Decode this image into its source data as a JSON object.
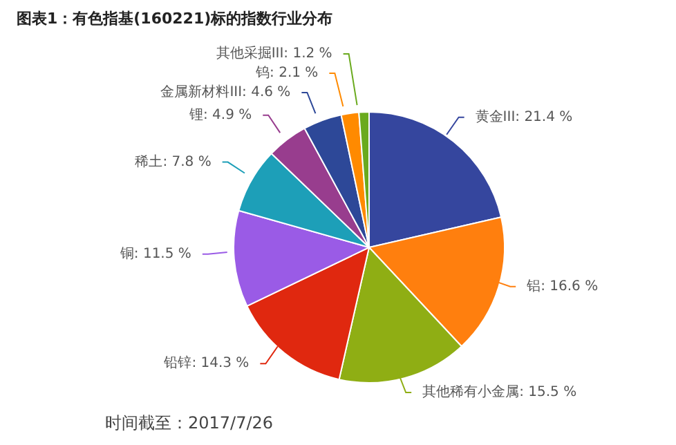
{
  "chart_data": {
    "type": "pie",
    "title": "图表1：有色指基(160221)标的指数行业分布",
    "categories": [
      "黄金III",
      "铝",
      "其他稀有小金属",
      "铅锌",
      "铜",
      "稀土",
      "锂",
      "金属新材料III",
      "钨",
      "其他采掘III"
    ],
    "values": [
      21.4,
      16.6,
      15.5,
      14.3,
      11.5,
      7.8,
      4.9,
      4.6,
      2.1,
      1.2
    ],
    "value_labels": [
      "21.4 %",
      "16.6 %",
      "15.5 %",
      "14.3 %",
      "11.5 %",
      "7.8 %",
      "4.9 %",
      "4.6 %",
      "2.1 %",
      "1.2 %"
    ],
    "colors": [
      "#35469e",
      "#ff7f0e",
      "#8fae14",
      "#e0280f",
      "#9a5be6",
      "#1d9fb8",
      "#983d8e",
      "#2d4898",
      "#ff8a00",
      "#6aaa1e"
    ],
    "annotations": [
      "时间截至：2017/7/26"
    ],
    "legend": false
  }
}
